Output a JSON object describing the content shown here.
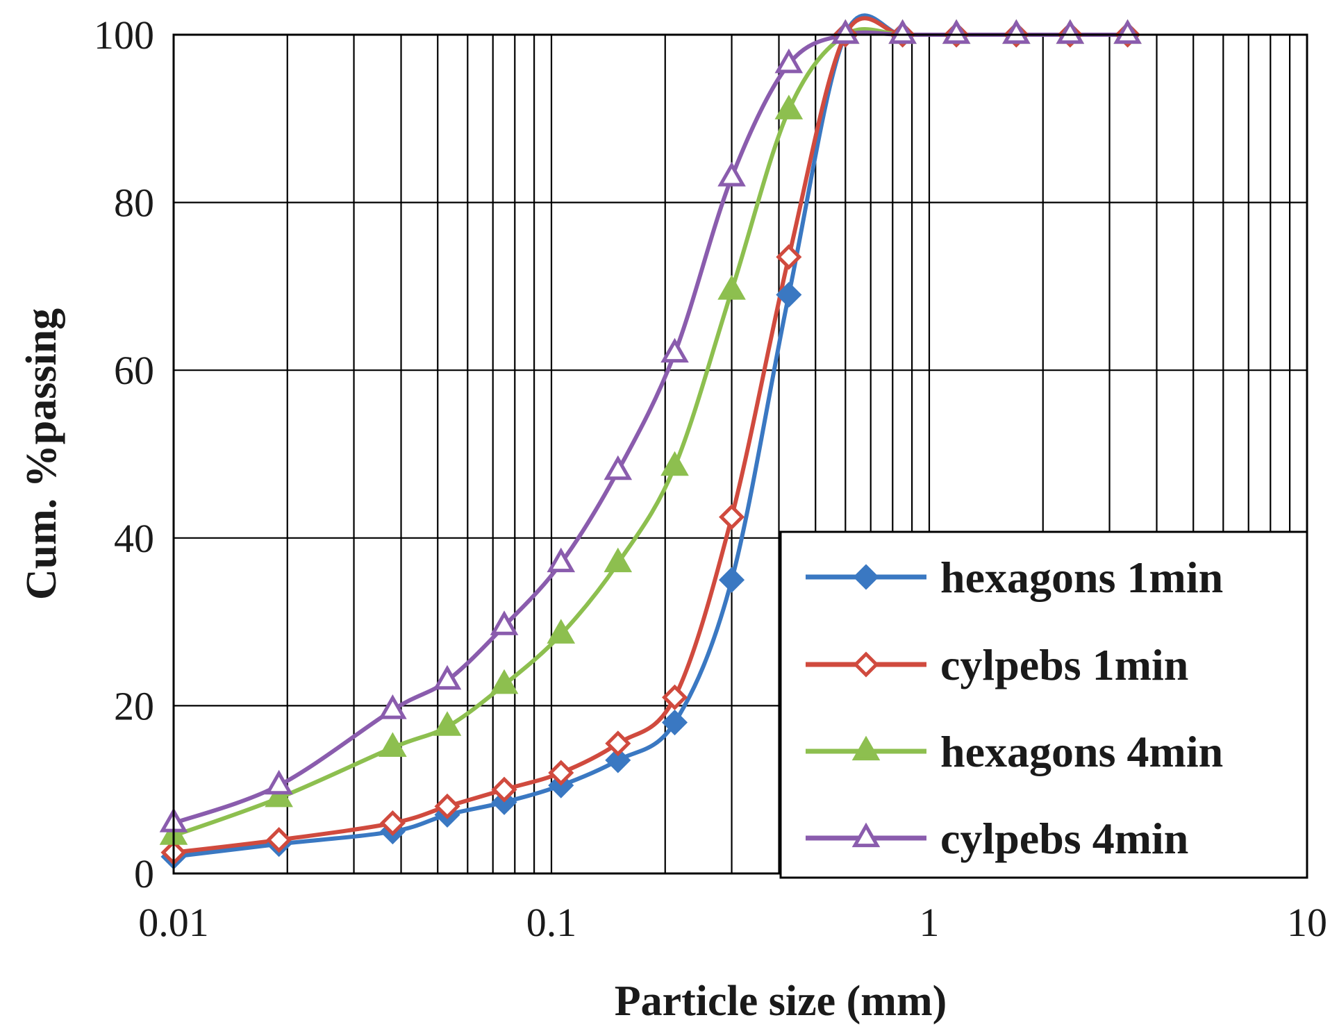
{
  "chart_data": {
    "type": "line",
    "title": "",
    "xlabel": "Particle size (mm)",
    "ylabel": "Cum. %passing",
    "xscale": "log",
    "xlim": [
      0.01,
      10
    ],
    "ylim": [
      0,
      100
    ],
    "grid": true,
    "legend_position": "bottom-right",
    "x_tick_labels": [
      "0.01",
      "0.1",
      "1",
      "10"
    ],
    "y_tick_labels": [
      "0",
      "20",
      "40",
      "60",
      "80",
      "100"
    ],
    "x": [
      0.01,
      0.019,
      0.038,
      0.053,
      0.075,
      0.106,
      0.15,
      0.212,
      0.3,
      0.425,
      0.6,
      0.85,
      1.18,
      1.7,
      2.36,
      3.35
    ],
    "series": [
      {
        "name": "hexagons 1min",
        "color": "#3a78c2",
        "marker": "diamond-filled",
        "values": [
          2,
          3.5,
          5,
          7,
          8.5,
          10.5,
          13.5,
          18,
          35,
          69,
          100,
          100,
          100,
          100,
          100,
          100
        ]
      },
      {
        "name": "cylpebs 1min",
        "color": "#d04a3e",
        "marker": "diamond-open",
        "values": [
          2.5,
          4,
          6,
          8,
          10,
          12,
          15.5,
          21,
          42.5,
          73.5,
          100,
          100,
          100,
          100,
          100,
          100
        ]
      },
      {
        "name": "hexagons 4min",
        "color": "#8dbf4f",
        "marker": "triangle-filled",
        "values": [
          4.5,
          9,
          15,
          17.5,
          22.5,
          28.5,
          37,
          48.5,
          69.5,
          91,
          100,
          100,
          100,
          100,
          100,
          100
        ]
      },
      {
        "name": "cylpebs 4min",
        "color": "#8a5cad",
        "marker": "triangle-open",
        "values": [
          6,
          10.5,
          19.5,
          23,
          29.5,
          37,
          48,
          62,
          83,
          96.5,
          100,
          100,
          100,
          100,
          100,
          100
        ]
      }
    ]
  }
}
